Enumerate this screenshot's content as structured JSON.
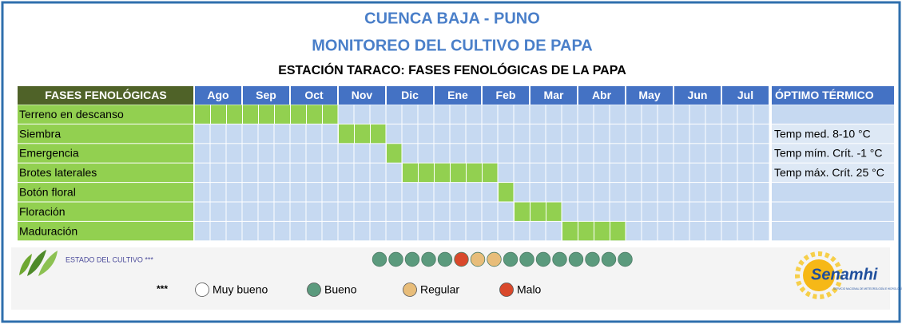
{
  "header": {
    "title": "CUENCA BAJA - PUNO",
    "subtitle": "MONITOREO DEL CULTIVO DE PAPA",
    "station": "ESTACIÓN TARACO: FASES FENOLÓGICAS DE LA PAPA"
  },
  "table": {
    "columns": {
      "phase": "FASES FENOLÓGICAS",
      "months": [
        "Ago",
        "Sep",
        "Oct",
        "Nov",
        "Dic",
        "Ene",
        "Feb",
        "Mar",
        "Abr",
        "May",
        "Jun",
        "Jul"
      ],
      "optimum": "ÓPTIMO TÉRMICO"
    },
    "rows": [
      {
        "phase": "Terreno en descanso",
        "start": 0,
        "end": 8
      },
      {
        "phase": "Siembra",
        "start": 9,
        "end": 11,
        "optimum": "Temp med. 8-10 °C"
      },
      {
        "phase": "Emergencia",
        "start": 12,
        "end": 12,
        "optimum": "Temp mím. Crít. -1 °C"
      },
      {
        "phase": "Brotes laterales",
        "start": 13,
        "end": 18,
        "optimum": "Temp máx. Crít. 25 °C"
      },
      {
        "phase": "Botón floral",
        "start": 19,
        "end": 19
      },
      {
        "phase": "Floración",
        "start": 20,
        "end": 22
      },
      {
        "phase": "Maduración",
        "start": 23,
        "end": 26
      }
    ]
  },
  "estado": {
    "label": "ESTADO DEL CULTIVO ***",
    "colors": [
      "#5b9a7d",
      "#5b9a7d",
      "#5b9a7d",
      "#5b9a7d",
      "#5b9a7d",
      "#d9482b",
      "#e8bd7a",
      "#e8bd7a",
      "#5b9a7d",
      "#5b9a7d",
      "#5b9a7d",
      "#5b9a7d",
      "#5b9a7d",
      "#5b9a7d",
      "#5b9a7d",
      "#5b9a7d"
    ]
  },
  "legend": {
    "marker": "***",
    "items": [
      {
        "label": "Muy bueno",
        "color": "#ffffff"
      },
      {
        "label": "Bueno",
        "color": "#5b9a7d"
      },
      {
        "label": "Regular",
        "color": "#e8bd7a"
      },
      {
        "label": "Malo",
        "color": "#d9482b"
      }
    ]
  },
  "logo": {
    "name": "Senamhi",
    "tagline": "SERVICIO NACIONAL DE METEOROLOGÍA E HIDROLOGÍA DEL PERÚ"
  }
}
